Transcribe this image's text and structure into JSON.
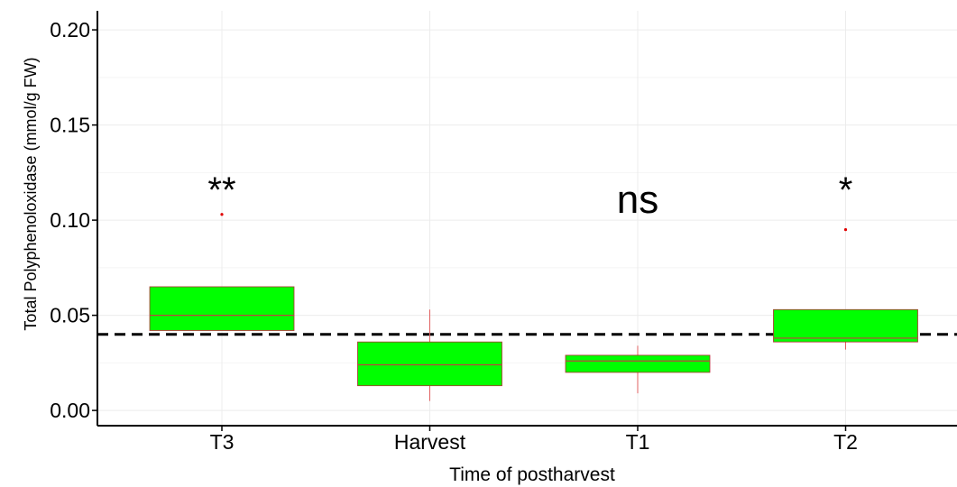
{
  "chart_data": {
    "type": "box",
    "title": "",
    "xlabel": "Time of postharvest",
    "ylabel": "Total Polyphenoloxidase (mmol/g FW)",
    "categories": [
      "T3",
      "Harvest",
      "T1",
      "T2"
    ],
    "ylim": [
      -0.008,
      0.21
    ],
    "yticks": [
      "0.00",
      "0.05",
      "0.10",
      "0.15",
      "0.20"
    ],
    "ytick_values": [
      0.0,
      0.05,
      0.1,
      0.15,
      0.2
    ],
    "grid": true,
    "reference_line": 0.04,
    "boxes": [
      {
        "category": "T3",
        "q1": 0.042,
        "median": 0.05,
        "q3": 0.065,
        "min": 0.042,
        "max": 0.065,
        "outliers": [
          0.103
        ],
        "annotation": "**"
      },
      {
        "category": "Harvest",
        "q1": 0.013,
        "median": 0.024,
        "q3": 0.036,
        "min": 0.005,
        "max": 0.053,
        "outliers": [],
        "annotation": ""
      },
      {
        "category": "T1",
        "q1": 0.02,
        "median": 0.026,
        "q3": 0.029,
        "min": 0.009,
        "max": 0.034,
        "outliers": [],
        "annotation": "ns"
      },
      {
        "category": "T2",
        "q1": 0.036,
        "median": 0.038,
        "q3": 0.053,
        "min": 0.032,
        "max": 0.053,
        "outliers": [
          0.095
        ],
        "annotation": "*"
      }
    ],
    "colors": {
      "box_fill": "#00ff00",
      "box_stroke": "#b03030",
      "median": "#c04040",
      "outlier": "#e00000",
      "whisker": "#e06060",
      "reference": "#000000",
      "grid": "#ececec"
    }
  }
}
